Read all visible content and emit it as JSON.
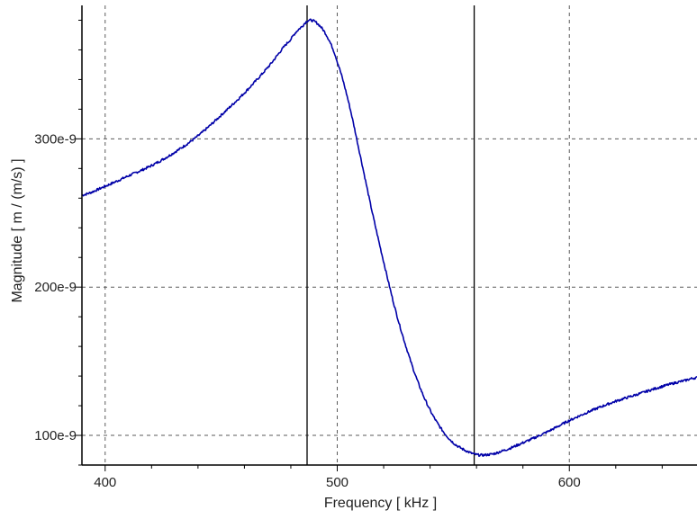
{
  "chart_data": {
    "type": "line",
    "title": "",
    "xlabel": "Frequency [ kHz ]",
    "ylabel": "Magnitude [ m / (m/s) ]",
    "xlim": [
      390,
      655
    ],
    "ylim": [
      80,
      390
    ],
    "x_ticks": [
      400,
      500,
      600
    ],
    "x_tick_labels": [
      "400",
      "500",
      "600"
    ],
    "y_ticks": [
      100,
      200,
      300
    ],
    "y_tick_labels": [
      "100e-9",
      "200e-9",
      "300e-9"
    ],
    "grid": true,
    "legend": "none",
    "cursors_x": [
      487,
      559
    ],
    "series": [
      {
        "color": "#0000a8",
        "x": [
          390,
          400,
          410,
          420,
          430,
          440,
          450,
          460,
          470,
          480,
          485,
          488,
          492,
          496,
          500,
          505,
          510,
          515,
          520,
          525,
          530,
          535,
          540,
          545,
          550,
          555,
          560,
          565,
          570,
          580,
          590,
          600,
          610,
          620,
          630,
          640,
          650,
          655
        ],
        "y": [
          262,
          268,
          275,
          282,
          291,
          302,
          316,
          331,
          348,
          367,
          376,
          380,
          377,
          368,
          352,
          324,
          288,
          251,
          217,
          185,
          158,
          135,
          117,
          104,
          95,
          90,
          87,
          87,
          89,
          95,
          102,
          110,
          117,
          123,
          128,
          133,
          137,
          139
        ]
      }
    ]
  }
}
